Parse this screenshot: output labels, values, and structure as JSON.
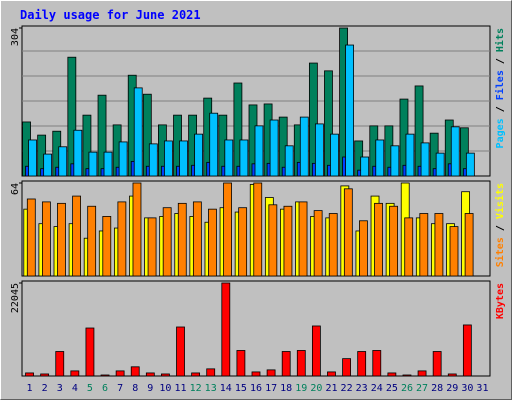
{
  "title": "Daily usage for June 2021",
  "chart_data": [
    {
      "type": "bar",
      "series": [
        {
          "name": "Hits",
          "color": "#00805c",
          "values": [
            111,
            84,
            92,
            244,
            125,
            166,
            105,
            207,
            168,
            105,
            125,
            125,
            160,
            125,
            191,
            146,
            148,
            121,
            105,
            232,
            216,
            304,
            72,
            103,
            103,
            158,
            185,
            88,
            115,
            99,
            0
          ]
        },
        {
          "name": "Files",
          "color": "#0040ff",
          "values": [
            20,
            15,
            18,
            25,
            15,
            15,
            18,
            30,
            20,
            20,
            20,
            22,
            28,
            20,
            20,
            25,
            26,
            18,
            28,
            26,
            22,
            39,
            12,
            20,
            18,
            22,
            20,
            15,
            25,
            15,
            0
          ]
        },
        {
          "name": "Pages",
          "color": "#00c0ff",
          "values": [
            74,
            45,
            60,
            94,
            49,
            49,
            70,
            181,
            66,
            72,
            72,
            86,
            129,
            74,
            74,
            103,
            115,
            62,
            121,
            107,
            86,
            269,
            39,
            74,
            62,
            86,
            68,
            47,
            101,
            47,
            0
          ]
        }
      ],
      "ylim": [
        0,
        304
      ],
      "yticks": [
        304
      ]
    },
    {
      "type": "bar",
      "series": [
        {
          "name": "Visits",
          "color": "#ffff00",
          "values": [
            46,
            36,
            34,
            36,
            26,
            31,
            33,
            55,
            40,
            41,
            43,
            41,
            37,
            47,
            44,
            63,
            54,
            46,
            51,
            41,
            40,
            62,
            31,
            55,
            50,
            64,
            40,
            36,
            36,
            58,
            0
          ]
        },
        {
          "name": "Sites",
          "color": "#ff8000",
          "values": [
            53,
            51,
            50,
            55,
            48,
            41,
            51,
            64,
            40,
            47,
            50,
            51,
            46,
            64,
            47,
            64,
            49,
            48,
            51,
            45,
            43,
            60,
            38,
            50,
            48,
            40,
            43,
            43,
            34,
            43,
            0
          ]
        }
      ],
      "ylim": [
        0,
        64
      ],
      "yticks": [
        64
      ]
    },
    {
      "type": "bar",
      "categories": [
        "1",
        "2",
        "3",
        "4",
        "5",
        "6",
        "7",
        "8",
        "9",
        "10",
        "11",
        "12",
        "13",
        "14",
        "15",
        "16",
        "17",
        "18",
        "19",
        "20",
        "21",
        "22",
        "23",
        "24",
        "25",
        "26",
        "27",
        "28",
        "29",
        "30",
        "31"
      ],
      "category_colors": [
        "#000080",
        "#000080",
        "#000080",
        "#000080",
        "#00805c",
        "#00805c",
        "#000080",
        "#000080",
        "#000080",
        "#000080",
        "#000080",
        "#00805c",
        "#00805c",
        "#000080",
        "#000080",
        "#000080",
        "#000080",
        "#000080",
        "#00805c",
        "#00805c",
        "#000080",
        "#000080",
        "#000080",
        "#000080",
        "#000080",
        "#00805c",
        "#00805c",
        "#000080",
        "#000080",
        "#000080",
        "#000080"
      ],
      "series": [
        {
          "name": "KBytes",
          "color": "#ff0000",
          "values": [
            726,
            484,
            5808,
            1210,
            11374,
            242,
            1210,
            2178,
            726,
            484,
            11616,
            726,
            1694,
            22045,
            6050,
            968,
            1452,
            5808,
            6050,
            11858,
            968,
            4114,
            5808,
            6050,
            726,
            242,
            1210,
            5808,
            484,
            12100,
            0
          ]
        }
      ],
      "ylim": [
        0,
        22045
      ],
      "yticks": [
        22045
      ]
    }
  ]
}
